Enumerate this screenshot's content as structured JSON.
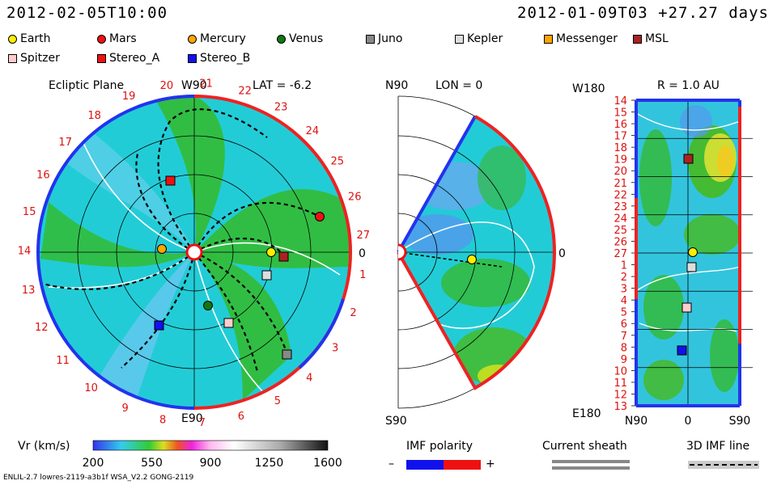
{
  "header": {
    "left": "2012-02-05T10:00",
    "right": "2012-01-09T03 +27.27 days"
  },
  "legend": [
    {
      "name": "Earth",
      "shape": "circle",
      "color": "#ffee00"
    },
    {
      "name": "Mars",
      "shape": "circle",
      "color": "#ee1111"
    },
    {
      "name": "Mercury",
      "shape": "circle",
      "color": "#ffa500"
    },
    {
      "name": "Venus",
      "shape": "circle",
      "color": "#117711"
    },
    {
      "name": "Juno",
      "shape": "square",
      "color": "#888888"
    },
    {
      "name": "Kepler",
      "shape": "square",
      "color": "#dddddd"
    },
    {
      "name": "Messenger",
      "shape": "square",
      "color": "#ffa500"
    },
    {
      "name": "MSL",
      "shape": "square",
      "color": "#aa2222"
    },
    {
      "name": "Spitzer",
      "shape": "square",
      "color": "#ffcccc"
    },
    {
      "name": "Stereo_A",
      "shape": "square",
      "color": "#ee1111"
    },
    {
      "name": "Stereo_B",
      "shape": "square",
      "color": "#1111ee"
    }
  ],
  "chart_data": [
    {
      "type": "polar-map",
      "title": "Ecliptic Plane",
      "lat_label": "LAT = -6.2",
      "top_label": "W90",
      "bottom_label": "E90",
      "right_label": "0",
      "rim_labels": [
        "1",
        "2",
        "3",
        "4",
        "5",
        "6",
        "7",
        "8",
        "9",
        "10",
        "11",
        "12",
        "13",
        "14",
        "15",
        "16",
        "17",
        "18",
        "19",
        "20",
        "21",
        "22",
        "23",
        "24",
        "25",
        "26",
        "27"
      ]
    },
    {
      "type": "meridional-map",
      "lon_label": "LON = 0",
      "top_label": "N90",
      "bottom_label": "S90",
      "right_label": "0"
    },
    {
      "type": "heatmap",
      "title": "R = 1.0 AU",
      "top_left": "W180",
      "bottom_left": "E180",
      "x_labels": [
        "N90",
        "0",
        "S90"
      ],
      "y_labels": [
        "14",
        "15",
        "16",
        "17",
        "18",
        "19",
        "20",
        "21",
        "22",
        "23",
        "24",
        "25",
        "26",
        "27",
        "1",
        "2",
        "3",
        "4",
        "5",
        "6",
        "7",
        "8",
        "9",
        "10",
        "11",
        "12",
        "13"
      ]
    },
    {
      "type": "colorbar",
      "label": "Vr (km/s)",
      "ticks": [
        "200",
        "550",
        "900",
        "1250",
        "1600"
      ],
      "range": [
        200,
        1600
      ]
    }
  ],
  "imf": {
    "label": "IMF polarity",
    "minus": "–",
    "plus": "+"
  },
  "sheath": {
    "label": "Current sheath"
  },
  "imfline": {
    "label": "3D IMF line"
  },
  "footer": {
    "left": "ENLIL-2.7 lowres-2119-a3b1f WSA_V2.2 GONG-2119"
  }
}
